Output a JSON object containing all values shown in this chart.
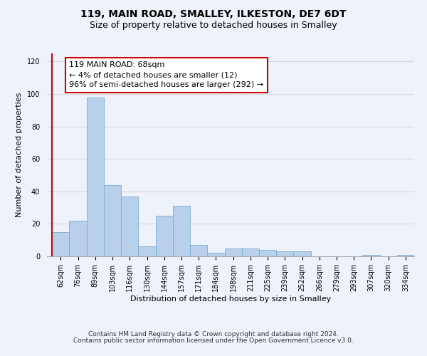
{
  "title": "119, MAIN ROAD, SMALLEY, ILKESTON, DE7 6DT",
  "subtitle": "Size of property relative to detached houses in Smalley",
  "xlabel": "Distribution of detached houses by size in Smalley",
  "ylabel": "Number of detached properties",
  "categories": [
    "62sqm",
    "76sqm",
    "89sqm",
    "103sqm",
    "116sqm",
    "130sqm",
    "144sqm",
    "157sqm",
    "171sqm",
    "184sqm",
    "198sqm",
    "211sqm",
    "225sqm",
    "239sqm",
    "252sqm",
    "266sqm",
    "279sqm",
    "293sqm",
    "307sqm",
    "320sqm",
    "334sqm"
  ],
  "values": [
    15,
    22,
    98,
    44,
    37,
    6,
    25,
    31,
    7,
    2,
    5,
    5,
    4,
    3,
    3,
    0,
    0,
    0,
    1,
    0,
    1
  ],
  "bar_color": "#b8d0ea",
  "bar_edge_color": "#7aadd4",
  "highlight_color": "#cc0000",
  "annotation_text": "119 MAIN ROAD: 68sqm\n← 4% of detached houses are smaller (12)\n96% of semi-detached houses are larger (292) →",
  "annotation_box_color": "#ffffff",
  "annotation_box_edge": "#cc0000",
  "ylim": [
    0,
    125
  ],
  "yticks": [
    0,
    20,
    40,
    60,
    80,
    100,
    120
  ],
  "grid_color": "#d0d8e8",
  "background_color": "#eef2fa",
  "footer_line1": "Contains HM Land Registry data © Crown copyright and database right 2024.",
  "footer_line2": "Contains public sector information licensed under the Open Government Licence v3.0.",
  "title_fontsize": 10,
  "subtitle_fontsize": 9,
  "axis_label_fontsize": 8,
  "tick_fontsize": 7,
  "annotation_fontsize": 8,
  "footer_fontsize": 6.5
}
